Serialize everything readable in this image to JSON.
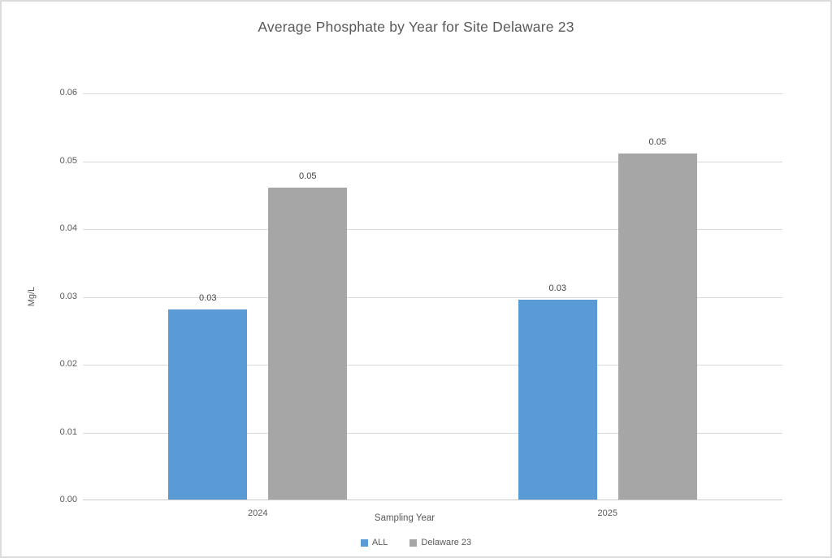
{
  "title": "Average Phosphate by Year for Site Delaware 23",
  "chart_data": {
    "type": "bar",
    "title": "Average Phosphate by Year for Site Delaware 23",
    "xlabel": "Sampling Year",
    "ylabel": "Mg/L",
    "categories": [
      "2024",
      "2025"
    ],
    "series": [
      {
        "name": "ALL",
        "color": "#5b9bd5",
        "values": [
          0.028,
          0.0295
        ],
        "labels": [
          "0.03",
          "0.03"
        ]
      },
      {
        "name": "Delaware 23",
        "color": "#a6a6a6",
        "values": [
          0.046,
          0.051
        ],
        "labels": [
          "0.05",
          "0.05"
        ]
      }
    ],
    "ylim": [
      0,
      0.06
    ],
    "yticks": [
      "0.06",
      "0.05",
      "0.04",
      "0.03",
      "0.02",
      "0.01",
      "0.00"
    ],
    "grid": true,
    "legend_position": "bottom"
  }
}
